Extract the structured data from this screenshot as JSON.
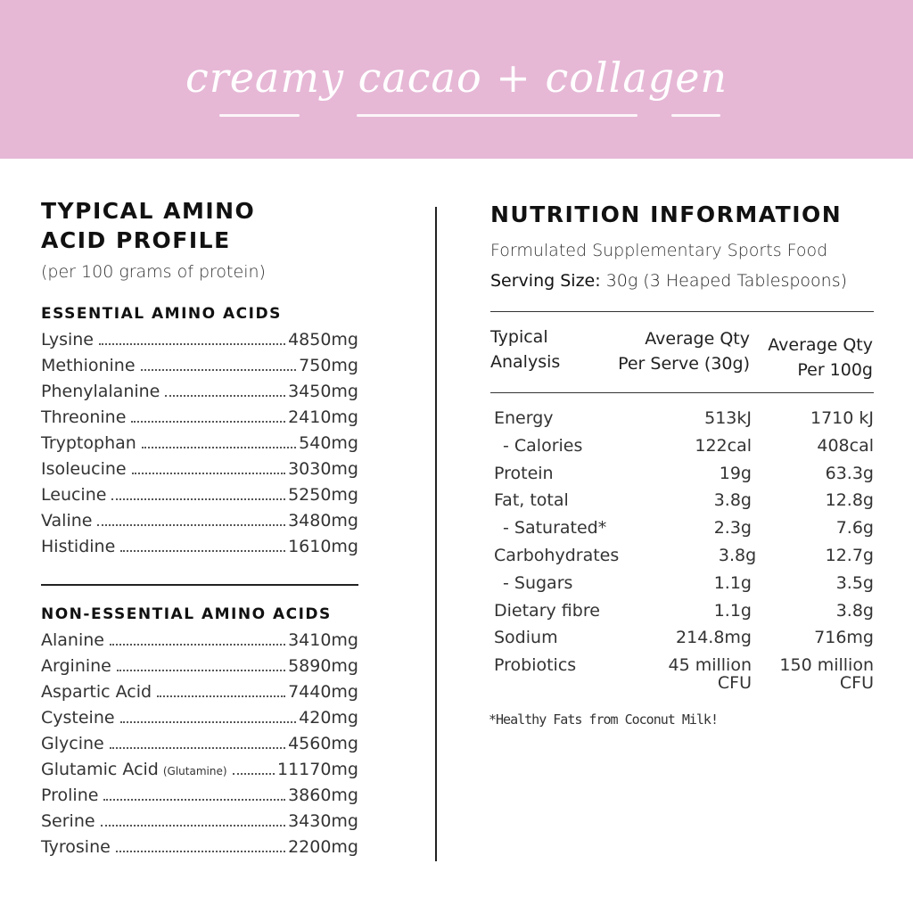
{
  "banner": {
    "title": "creamy cacao + collagen",
    "color": "#e6b8d6"
  },
  "amino": {
    "title_line1": "TYPICAL AMINO",
    "title_line2": "ACID PROFILE",
    "subtitle": "(per 100 grams of protein)",
    "essential_heading": "ESSENTIAL AMINO ACIDS",
    "essential": [
      {
        "name": "Lysine",
        "value": "4850mg"
      },
      {
        "name": "Methionine",
        "value": "750mg"
      },
      {
        "name": "Phenylalanine",
        "value": "3450mg"
      },
      {
        "name": "Threonine",
        "value": "2410mg"
      },
      {
        "name": "Tryptophan",
        "value": "540mg"
      },
      {
        "name": "Isoleucine",
        "value": "3030mg"
      },
      {
        "name": "Leucine",
        "value": "5250mg"
      },
      {
        "name": "Valine",
        "value": "3480mg"
      },
      {
        "name": "Histidine",
        "value": "1610mg"
      }
    ],
    "nonessential_heading": "NON-ESSENTIAL AMINO ACIDS",
    "nonessential": [
      {
        "name": "Alanine",
        "value": "3410mg"
      },
      {
        "name": "Arginine",
        "value": "5890mg"
      },
      {
        "name": "Aspartic Acid",
        "value": "7440mg"
      },
      {
        "name": "Cysteine",
        "value": "420mg"
      },
      {
        "name": "Glycine",
        "value": "4560mg"
      },
      {
        "name": "Glutamic Acid",
        "note": "(Glutamine)",
        "value": "11170mg"
      },
      {
        "name": "Proline",
        "value": "3860mg"
      },
      {
        "name": "Serine",
        "value": "3430mg"
      },
      {
        "name": "Tyrosine",
        "value": "2200mg"
      }
    ]
  },
  "nutrition": {
    "title": "NUTRITION INFORMATION",
    "subtitle": "Formulated Supplementary Sports Food",
    "serving_label": "Serving Size:",
    "serving_value": "30g (3 Heaped Tablespoons)",
    "headers": {
      "c1a": "Typical",
      "c1b": "Analysis",
      "c2a": "Average Qty",
      "c2b": "Per  Serve (30g)",
      "c3a": "Average Qty",
      "c3b": "Per 100g"
    },
    "rows": [
      {
        "name": "Energy",
        "serve": "513kJ",
        "per100": "1710 kJ"
      },
      {
        "name": "- Calories",
        "serve": "122cal",
        "per100": "408cal",
        "indent": true
      },
      {
        "name": "Protein",
        "serve": "19g",
        "per100": "63.3g"
      },
      {
        "name": "Fat, total",
        "serve": "3.8g",
        "per100": "12.8g"
      },
      {
        "name": "- Saturated*",
        "serve": "2.3g",
        "per100": "7.6g",
        "indent": true
      },
      {
        "name": "Carbohydrates",
        "serve": "3.8g",
        "per100": "12.7g"
      },
      {
        "name": "- Sugars",
        "serve": "1.1g",
        "per100": "3.5g",
        "indent": true
      },
      {
        "name": "Dietary fibre",
        "serve": "1.1g",
        "per100": "3.8g"
      },
      {
        "name": "Sodium",
        "serve": "214.8mg",
        "per100": "716mg"
      },
      {
        "name": "Probiotics",
        "serve": "45 million",
        "serve2": "CFU",
        "per100": "150 million",
        "per1002": "CFU"
      }
    ],
    "footnote": "*Healthy Fats from Coconut Milk!"
  }
}
